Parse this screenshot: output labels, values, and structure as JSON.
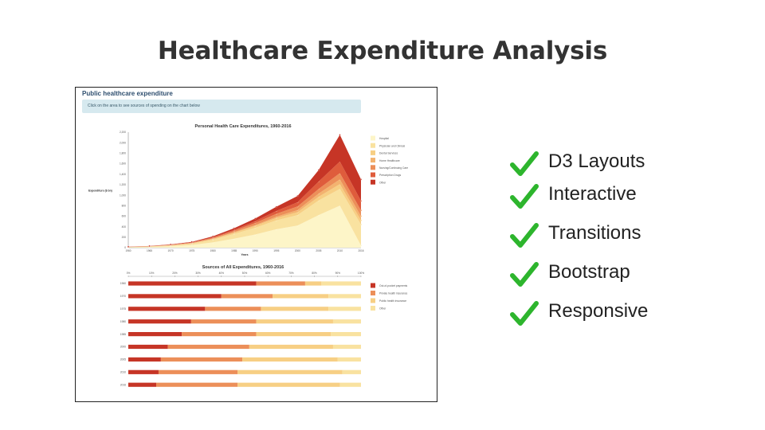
{
  "slide": {
    "title": "Healthcare Expenditure Analysis"
  },
  "screenshot": {
    "panel_title": "Public healthcare expenditure",
    "info_text": "Click on the area to see sources of spending on the chart below"
  },
  "colors": {
    "hospital": "#fdf5c8",
    "physician": "#f9e2a0",
    "dental": "#f7cf84",
    "home": "#f3b36f",
    "nursing": "#ec8f59",
    "prescription": "#df5c3c",
    "other": "#c63526",
    "check": "#2db52d"
  },
  "chart_data": [
    {
      "type": "area",
      "title": "Personal Health Care Expenditures, 1960-2016",
      "xlabel": "Years",
      "ylabel": "Expenditure ($ bn)",
      "ylim": [
        0,
        2200
      ],
      "y_ticks": [
        "0",
        "200",
        "400",
        "600",
        "800",
        "1,000",
        "1,200",
        "1,400",
        "1,600",
        "1,800",
        "2,000",
        "2,200"
      ],
      "x": [
        "1960",
        "1965",
        "1970",
        "1975",
        "1980",
        "1985",
        "1990",
        "1995",
        "2000",
        "2005",
        "2010",
        "2016"
      ],
      "legend_position": "right",
      "series": [
        {
          "name": "Hospital",
          "values": [
            5,
            12,
            25,
            50,
            100,
            170,
            250,
            350,
            420,
            620,
            800,
            40
          ]
        },
        {
          "name": "Physician and Clinical",
          "values": [
            5,
            8,
            15,
            25,
            50,
            90,
            130,
            170,
            200,
            280,
            320,
            400
          ]
        },
        {
          "name": "Dental Services",
          "values": [
            2,
            3,
            5,
            8,
            15,
            25,
            35,
            45,
            55,
            70,
            90,
            80
          ]
        },
        {
          "name": "Home Healthcare",
          "values": [
            1,
            1,
            2,
            3,
            6,
            10,
            15,
            25,
            40,
            60,
            90,
            80
          ]
        },
        {
          "name": "Nursing/Continuing Care",
          "values": [
            1,
            2,
            4,
            7,
            15,
            25,
            40,
            55,
            70,
            90,
            120,
            110
          ]
        },
        {
          "name": "Prescription Drugs",
          "values": [
            2,
            3,
            5,
            8,
            12,
            20,
            35,
            55,
            80,
            140,
            220,
            180
          ]
        },
        {
          "name": "Other",
          "values": [
            2,
            3,
            6,
            10,
            18,
            30,
            50,
            80,
            120,
            220,
            510,
            410
          ]
        }
      ]
    },
    {
      "type": "bar",
      "stacked": true,
      "orientation": "horizontal",
      "title": "Sources of All Expenditures, 1960-2016",
      "x_ticks": [
        "0%",
        "10%",
        "20%",
        "30%",
        "40%",
        "50%",
        "60%",
        "70%",
        "80%",
        "90%",
        "100%"
      ],
      "categories": [
        "1960",
        "1970",
        "1975",
        "1980",
        "1985",
        "2000",
        "2005",
        "2010",
        "2016"
      ],
      "legend_position": "right",
      "series": [
        {
          "name": "Out-of-pocket payments",
          "values": [
            55,
            40,
            33,
            27,
            23,
            17,
            14,
            13,
            12
          ]
        },
        {
          "name": "Private health insurance",
          "values": [
            21,
            22,
            24,
            28,
            32,
            35,
            35,
            34,
            35
          ]
        },
        {
          "name": "Public health insurance",
          "values": [
            7,
            24,
            29,
            33,
            32,
            36,
            41,
            45,
            44
          ]
        },
        {
          "name": "Other",
          "values": [
            17,
            14,
            14,
            12,
            13,
            12,
            10,
            8,
            9
          ]
        }
      ]
    }
  ],
  "bullets": [
    {
      "label": "D3 Layouts"
    },
    {
      "label": "Interactive"
    },
    {
      "label": "Transitions"
    },
    {
      "label": "Bootstrap"
    },
    {
      "label": "Responsive"
    }
  ]
}
